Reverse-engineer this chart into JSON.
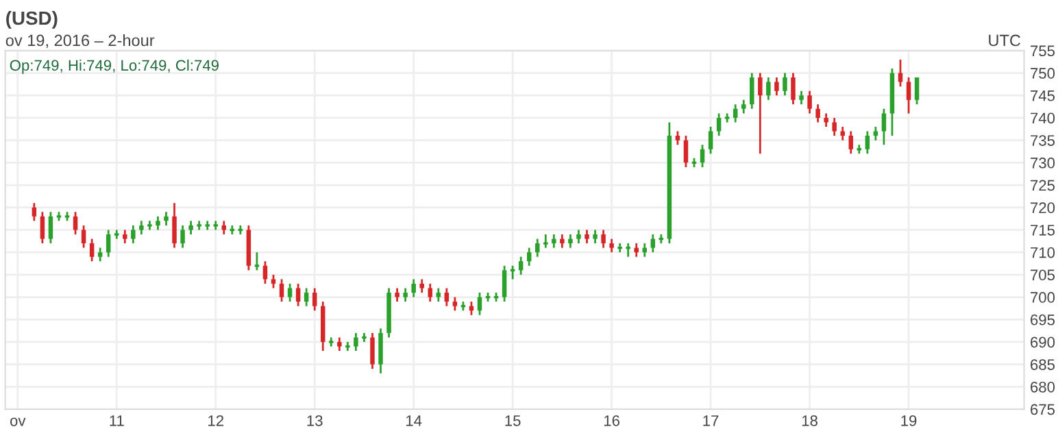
{
  "chart_data": {
    "type": "candlestick",
    "title": "(USD)",
    "subtitle": "ov 19, 2016 – 2-hour",
    "annotations": [
      "Op:749, Hi:749, Lo:749, Cl:749",
      "UTC"
    ],
    "xlim": [
      "2016-11-09T21:00",
      "2016-11-20T04:00"
    ],
    "xticks": [
      {
        "value": "2016-11-10",
        "label": "ov"
      },
      {
        "value": "2016-11-11",
        "label": "11"
      },
      {
        "value": "2016-11-12",
        "label": "12"
      },
      {
        "value": "2016-11-13",
        "label": "13"
      },
      {
        "value": "2016-11-14",
        "label": "14"
      },
      {
        "value": "2016-11-15",
        "label": "15"
      },
      {
        "value": "2016-11-16",
        "label": "16"
      },
      {
        "value": "2016-11-17",
        "label": "17"
      },
      {
        "value": "2016-11-18",
        "label": "18"
      },
      {
        "value": "2016-11-19",
        "label": "19"
      }
    ],
    "ylim": [
      675,
      755
    ],
    "yticks": [
      675,
      680,
      685,
      690,
      695,
      700,
      705,
      710,
      715,
      720,
      725,
      730,
      735,
      740,
      745,
      750,
      755
    ],
    "grid": true,
    "x": [
      "2016-11-10T04:00",
      "2016-11-10T06:00",
      "2016-11-10T08:00",
      "2016-11-10T10:00",
      "2016-11-10T12:00",
      "2016-11-10T14:00",
      "2016-11-10T16:00",
      "2016-11-10T18:00",
      "2016-11-10T20:00",
      "2016-11-10T22:00",
      "2016-11-11T00:00",
      "2016-11-11T02:00",
      "2016-11-11T04:00",
      "2016-11-11T06:00",
      "2016-11-11T08:00",
      "2016-11-11T10:00",
      "2016-11-11T12:00",
      "2016-11-11T14:00",
      "2016-11-11T16:00",
      "2016-11-11T18:00",
      "2016-11-11T20:00",
      "2016-11-11T22:00",
      "2016-11-12T00:00",
      "2016-11-12T02:00",
      "2016-11-12T04:00",
      "2016-11-12T06:00",
      "2016-11-12T08:00",
      "2016-11-12T10:00",
      "2016-11-12T12:00",
      "2016-11-12T14:00",
      "2016-11-12T16:00",
      "2016-11-12T18:00",
      "2016-11-12T20:00",
      "2016-11-12T22:00",
      "2016-11-13T00:00",
      "2016-11-13T02:00",
      "2016-11-13T04:00",
      "2016-11-13T06:00",
      "2016-11-13T08:00",
      "2016-11-13T10:00",
      "2016-11-13T12:00",
      "2016-11-13T14:00",
      "2016-11-13T16:00",
      "2016-11-13T18:00",
      "2016-11-13T20:00",
      "2016-11-13T22:00",
      "2016-11-14T00:00",
      "2016-11-14T02:00",
      "2016-11-14T04:00",
      "2016-11-14T06:00",
      "2016-11-14T08:00",
      "2016-11-14T10:00",
      "2016-11-14T12:00",
      "2016-11-14T14:00",
      "2016-11-14T16:00",
      "2016-11-14T18:00",
      "2016-11-14T20:00",
      "2016-11-14T22:00",
      "2016-11-15T00:00",
      "2016-11-15T02:00",
      "2016-11-15T04:00",
      "2016-11-15T06:00",
      "2016-11-15T08:00",
      "2016-11-15T10:00",
      "2016-11-15T12:00",
      "2016-11-15T14:00",
      "2016-11-15T16:00",
      "2016-11-15T18:00",
      "2016-11-15T20:00",
      "2016-11-15T22:00",
      "2016-11-16T00:00",
      "2016-11-16T02:00",
      "2016-11-16T04:00",
      "2016-11-16T06:00",
      "2016-11-16T08:00",
      "2016-11-16T10:00",
      "2016-11-16T12:00",
      "2016-11-16T14:00",
      "2016-11-16T16:00",
      "2016-11-16T18:00",
      "2016-11-16T20:00",
      "2016-11-16T22:00",
      "2016-11-17T00:00",
      "2016-11-17T02:00",
      "2016-11-17T04:00",
      "2016-11-17T06:00",
      "2016-11-17T08:00",
      "2016-11-17T10:00",
      "2016-11-17T12:00",
      "2016-11-17T14:00",
      "2016-11-17T16:00",
      "2016-11-17T18:00",
      "2016-11-17T20:00",
      "2016-11-17T22:00",
      "2016-11-18T00:00",
      "2016-11-18T02:00",
      "2016-11-18T04:00",
      "2016-11-18T06:00",
      "2016-11-18T08:00",
      "2016-11-18T10:00",
      "2016-11-18T12:00",
      "2016-11-18T14:00",
      "2016-11-18T16:00",
      "2016-11-18T18:00",
      "2016-11-18T20:00",
      "2016-11-18T22:00",
      "2016-11-19T00:00",
      "2016-11-19T02:00"
    ],
    "ohlc": [
      [
        720,
        721,
        717,
        718
      ],
      [
        718,
        719,
        712,
        713
      ],
      [
        713,
        719,
        712,
        718
      ],
      [
        718,
        719,
        717,
        718
      ],
      [
        718,
        719,
        717,
        718
      ],
      [
        718,
        719,
        714,
        715
      ],
      [
        715,
        716,
        711,
        712
      ],
      [
        712,
        713,
        708,
        709
      ],
      [
        709,
        711,
        708,
        710
      ],
      [
        710,
        715,
        709,
        714
      ],
      [
        714,
        715,
        713,
        714
      ],
      [
        714,
        715,
        712,
        713
      ],
      [
        713,
        716,
        712,
        715
      ],
      [
        715,
        717,
        714,
        716
      ],
      [
        716,
        717,
        715,
        716
      ],
      [
        716,
        718,
        715,
        717
      ],
      [
        717,
        719,
        716,
        718
      ],
      [
        718,
        721,
        711,
        712
      ],
      [
        712,
        716,
        711,
        715
      ],
      [
        715,
        717,
        714,
        716
      ],
      [
        716,
        717,
        715,
        716
      ],
      [
        716,
        717,
        715,
        716
      ],
      [
        716,
        717,
        715,
        716
      ],
      [
        716,
        717,
        714,
        715
      ],
      [
        715,
        716,
        714,
        715
      ],
      [
        715,
        716,
        714,
        715
      ],
      [
        715,
        716,
        706,
        707
      ],
      [
        707,
        710,
        706,
        707
      ],
      [
        707,
        708,
        703,
        704
      ],
      [
        704,
        705,
        702,
        703
      ],
      [
        703,
        704,
        699,
        700
      ],
      [
        700,
        703,
        699,
        702
      ],
      [
        702,
        703,
        698,
        699
      ],
      [
        699,
        702,
        698,
        701
      ],
      [
        701,
        702,
        697,
        698
      ],
      [
        698,
        699,
        688,
        690
      ],
      [
        690,
        691,
        689,
        690
      ],
      [
        690,
        691,
        688,
        689
      ],
      [
        689,
        690,
        688,
        689
      ],
      [
        689,
        692,
        688,
        691
      ],
      [
        691,
        692,
        690,
        691
      ],
      [
        691,
        692,
        684,
        685
      ],
      [
        685,
        693,
        683,
        692
      ],
      [
        692,
        702,
        691,
        701
      ],
      [
        701,
        702,
        699,
        700
      ],
      [
        700,
        702,
        699,
        701
      ],
      [
        701,
        704,
        700,
        703
      ],
      [
        703,
        704,
        701,
        702
      ],
      [
        702,
        703,
        699,
        700
      ],
      [
        700,
        702,
        699,
        701
      ],
      [
        701,
        702,
        698,
        699
      ],
      [
        699,
        700,
        697,
        698
      ],
      [
        698,
        699,
        697,
        698
      ],
      [
        698,
        699,
        696,
        697
      ],
      [
        697,
        701,
        696,
        700
      ],
      [
        700,
        701,
        699,
        700
      ],
      [
        700,
        701,
        699,
        700
      ],
      [
        700,
        707,
        699,
        706
      ],
      [
        706,
        707,
        704,
        706
      ],
      [
        706,
        709,
        705,
        708
      ],
      [
        708,
        711,
        707,
        710
      ],
      [
        710,
        713,
        709,
        712
      ],
      [
        712,
        714,
        711,
        712
      ],
      [
        712,
        714,
        711,
        713
      ],
      [
        713,
        714,
        711,
        712
      ],
      [
        712,
        714,
        711,
        713
      ],
      [
        713,
        715,
        712,
        714
      ],
      [
        714,
        715,
        712,
        713
      ],
      [
        713,
        715,
        712,
        714
      ],
      [
        714,
        715,
        711,
        712
      ],
      [
        712,
        713,
        710,
        711
      ],
      [
        711,
        712,
        710,
        711
      ],
      [
        711,
        712,
        709,
        711
      ],
      [
        711,
        712,
        709,
        710
      ],
      [
        710,
        712,
        709,
        711
      ],
      [
        711,
        714,
        710,
        713
      ],
      [
        713,
        714,
        712,
        713
      ],
      [
        713,
        739,
        712,
        736
      ],
      [
        736,
        737,
        734,
        735
      ],
      [
        735,
        736,
        729,
        730
      ],
      [
        730,
        731,
        729,
        730
      ],
      [
        730,
        734,
        729,
        733
      ],
      [
        733,
        738,
        732,
        737
      ],
      [
        737,
        741,
        736,
        740
      ],
      [
        740,
        741,
        739,
        740
      ],
      [
        740,
        743,
        739,
        742
      ],
      [
        742,
        744,
        741,
        743
      ],
      [
        743,
        750,
        742,
        749
      ],
      [
        749,
        750,
        732,
        745
      ],
      [
        745,
        749,
        744,
        748
      ],
      [
        748,
        749,
        745,
        746
      ],
      [
        746,
        750,
        745,
        749
      ],
      [
        749,
        750,
        743,
        744
      ],
      [
        744,
        746,
        743,
        745
      ],
      [
        745,
        746,
        741,
        742
      ],
      [
        742,
        743,
        739,
        740
      ],
      [
        740,
        741,
        738,
        739
      ],
      [
        739,
        740,
        736,
        737
      ],
      [
        737,
        738,
        735,
        736
      ],
      [
        736,
        737,
        732,
        733
      ],
      [
        733,
        734,
        732,
        733
      ],
      [
        733,
        737,
        732,
        736
      ],
      [
        736,
        738,
        735,
        737
      ],
      [
        737,
        742,
        734,
        741
      ],
      [
        741,
        751,
        736,
        750
      ],
      [
        750,
        753,
        747,
        748
      ],
      [
        748,
        749,
        741,
        744
      ],
      [
        744,
        749,
        743,
        749
      ]
    ]
  }
}
